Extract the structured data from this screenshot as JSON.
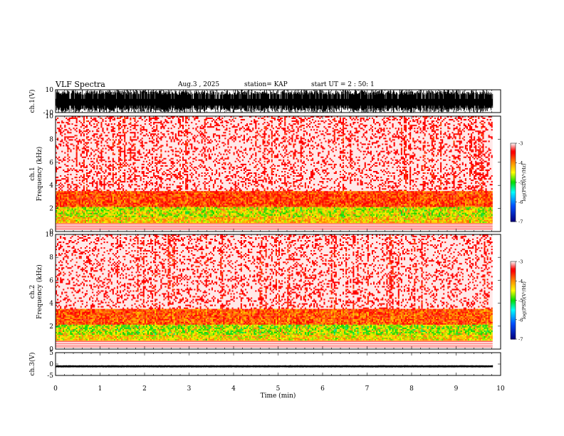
{
  "header": {
    "title": "VLF Spectra",
    "date": "Aug.3 , 2025",
    "station": "station= KAP",
    "start": "start UT = 2 : 50: 1"
  },
  "colors": {
    "colorbar_stops": [
      "#000080",
      "#0050ff",
      "#00ffff",
      "#00dd00",
      "#ffff00",
      "#ff0000",
      "#ffffff"
    ],
    "waveform": "#000000",
    "spectrogram_low": "#ffff00",
    "spectrogram_high": "#ff0000",
    "background": "#ffffff"
  },
  "chart_data": [
    {
      "type": "line",
      "panel": "ch1-waveform",
      "ylabel": "ch.1(V)",
      "ylim": [
        -10,
        10
      ],
      "yticks": [
        "10",
        "-10"
      ],
      "xlim": [
        0,
        10
      ],
      "x_range_data": [
        0,
        9.82
      ],
      "description_values": "dense burst waveform filling most of the range, amplitude near +/-10 V"
    },
    {
      "type": "heatmap",
      "panel": "ch1-spectrogram",
      "ylabel": "ch.1 Frequency (kHz)",
      "ylim": [
        0,
        10
      ],
      "yticks": [
        "0",
        "2",
        "4",
        "6",
        "8",
        "10"
      ],
      "xlim": [
        0,
        10
      ],
      "x_range_data": [
        0,
        9.82
      ],
      "bands": [
        {
          "from_khz": 0.7,
          "to_khz": 1.3,
          "level": -4.3
        },
        {
          "from_khz": 1.3,
          "to_khz": 2.1,
          "level": -4.6
        },
        {
          "from_khz": 2.1,
          "to_khz": 3.5,
          "level": -3.7
        },
        {
          "from_khz": 3.5,
          "to_khz": 10.0,
          "level": -3.2
        }
      ],
      "colorbar": {
        "label": "log(PSD)(V²/Hz)",
        "range": [
          -7,
          -3
        ],
        "ticks": [
          "-3",
          "-4",
          "-5",
          "-6",
          "-7"
        ]
      }
    },
    {
      "type": "heatmap",
      "panel": "ch2-spectrogram",
      "ylabel": "ch.2 Frequency (kHz)",
      "ylim": [
        0,
        10
      ],
      "yticks": [
        "0",
        "2",
        "4",
        "6",
        "8",
        "10"
      ],
      "xlim": [
        0,
        10
      ],
      "x_range_data": [
        0,
        9.82
      ],
      "bands": [
        {
          "from_khz": 0.7,
          "to_khz": 1.3,
          "level": -4.4
        },
        {
          "from_khz": 1.3,
          "to_khz": 2.1,
          "level": -4.7
        },
        {
          "from_khz": 2.1,
          "to_khz": 3.5,
          "level": -3.8
        },
        {
          "from_khz": 3.5,
          "to_khz": 10.0,
          "level": -3.2
        }
      ],
      "colorbar": {
        "label": "log(PSD)(V²/Hz)",
        "range": [
          -7,
          -3
        ],
        "ticks": [
          "-3",
          "-4",
          "-5",
          "-6",
          "-7"
        ]
      }
    },
    {
      "type": "line",
      "panel": "ch3-waveform",
      "ylabel": "ch.3(V)",
      "ylim": [
        -5,
        5
      ],
      "yticks": [
        "5",
        "0",
        "-5"
      ],
      "xlim": [
        0,
        10
      ],
      "x_range_data": [
        0,
        9.82
      ],
      "xlabel": "Time (min)",
      "xticks": [
        "0",
        "1",
        "2",
        "3",
        "4",
        "5",
        "6",
        "7",
        "8",
        "9",
        "10"
      ],
      "description_values": "steady narrow band around -1 V"
    }
  ]
}
